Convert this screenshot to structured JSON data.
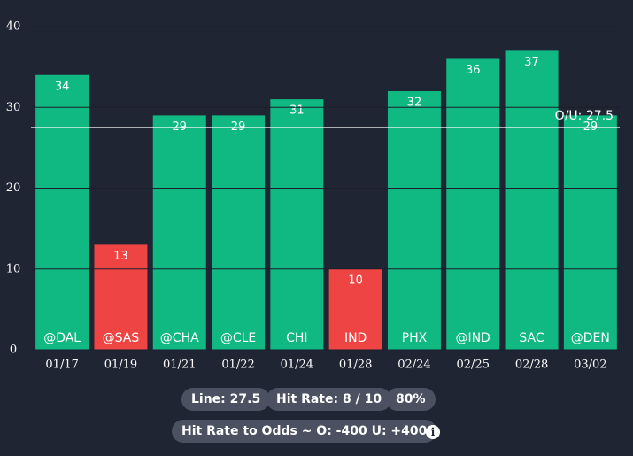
{
  "chart_data": {
    "type": "bar",
    "categories": [
      "01/17",
      "01/19",
      "01/21",
      "01/22",
      "01/24",
      "01/28",
      "02/24",
      "02/25",
      "02/28",
      "03/02"
    ],
    "opponents": [
      "@DAL",
      "@SAS",
      "@CHA",
      "@CLE",
      "CHI",
      "IND",
      "PHX",
      "@IND",
      "SAC",
      "@DEN"
    ],
    "values": [
      34,
      13,
      29,
      29,
      31,
      10,
      32,
      36,
      37,
      29
    ],
    "colors": [
      "#10b981",
      "#ef4444",
      "#10b981",
      "#10b981",
      "#10b981",
      "#ef4444",
      "#10b981",
      "#10b981",
      "#10b981",
      "#10b981"
    ],
    "ylim": [
      0,
      40
    ],
    "yticks": [
      0,
      10,
      20,
      30,
      40
    ],
    "grid": true,
    "line": {
      "value": 27.5,
      "label": "O/U: 27.5"
    }
  },
  "summary": {
    "pills": [
      "Line: 27.5",
      "Hit Rate: 8 / 10",
      "80%"
    ],
    "odds": "Hit Rate to Odds ~ O: -400 U: +400"
  }
}
